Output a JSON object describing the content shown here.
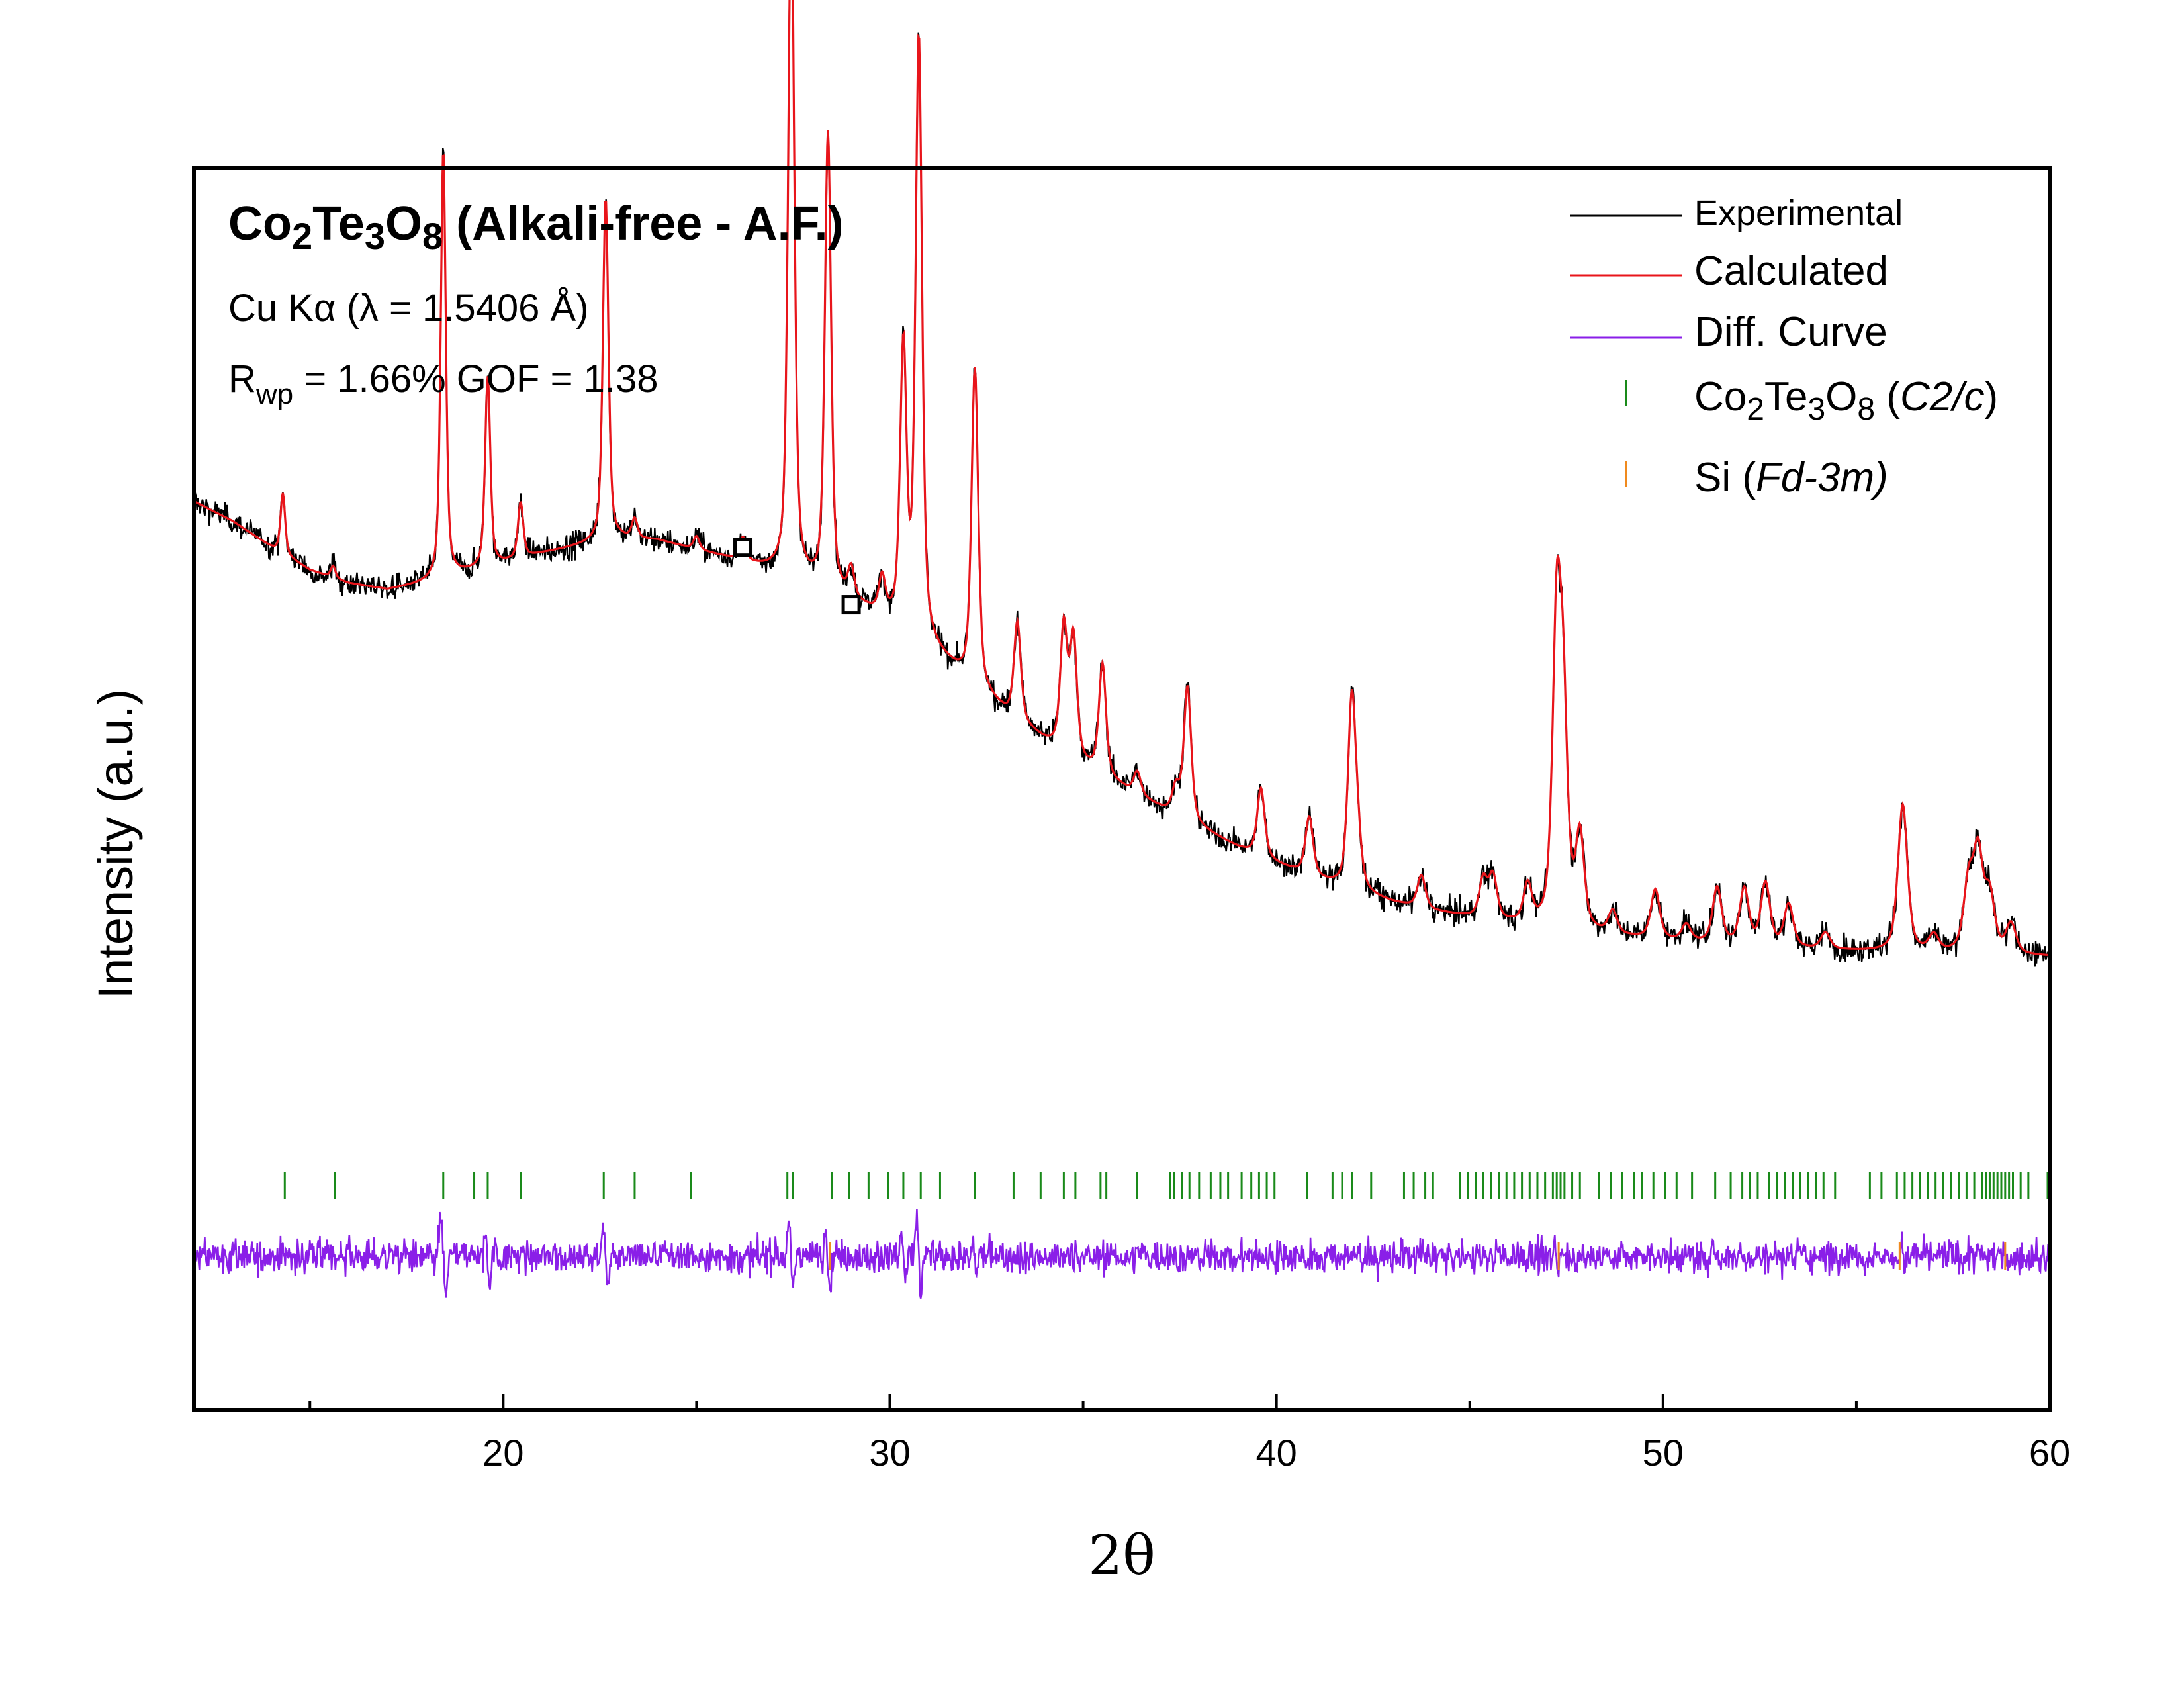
{
  "chart_data": {
    "type": "line",
    "title": {
      "parts": [
        {
          "t": "Co",
          "s": "base"
        },
        {
          "t": "2",
          "s": "sub"
        },
        {
          "t": "Te",
          "s": "base"
        },
        {
          "t": "3",
          "s": "sub"
        },
        {
          "t": "O",
          "s": "base"
        },
        {
          "t": "8",
          "s": "sub"
        },
        {
          "t": " (Alkali-free - A.F.)",
          "s": "base"
        }
      ]
    },
    "annotations": {
      "radiation": "Cu Kα (λ = 1.5406 Å)",
      "rwp_symbol": "R",
      "rwp_sub": "wp",
      "rwp_rest": " = 1.66%  GOF = 1.38"
    },
    "xlabel": "2θ",
    "ylabel": "Intensity (a.u.)",
    "xlim": [
      12,
      60
    ],
    "ylim": [
      -560,
      1340
    ],
    "xticks": [
      20,
      30,
      40,
      50,
      60
    ],
    "xticks_minor": [
      15,
      25,
      35,
      45,
      55
    ],
    "yticks": [],
    "grid": false,
    "legend_position": "top-right",
    "colors": {
      "experimental": "#000000",
      "calculated": "#e8151b",
      "diff": "#8a1fe8",
      "phase1": "#1a8a1a",
      "phase2": "#f08a1e"
    },
    "legend": [
      {
        "kind": "line",
        "color": "#000000",
        "parts": [
          {
            "t": "Experimental",
            "s": "base"
          }
        ]
      },
      {
        "kind": "line",
        "color": "#e8151b",
        "parts": [
          {
            "t": "Calculated",
            "s": "base"
          }
        ]
      },
      {
        "kind": "line",
        "color": "#8a1fe8",
        "parts": [
          {
            "t": "Diff. Curve",
            "s": "base"
          }
        ]
      },
      {
        "kind": "tick",
        "color": "#1a8a1a",
        "parts": [
          {
            "t": "Co",
            "s": "base"
          },
          {
            "t": "2",
            "s": "sub"
          },
          {
            "t": "Te",
            "s": "base"
          },
          {
            "t": "3",
            "s": "sub"
          },
          {
            "t": "O",
            "s": "base"
          },
          {
            "t": "8",
            "s": "sub"
          },
          {
            "t": " (",
            "s": "base"
          },
          {
            "t": "C2/c",
            "s": "ital"
          },
          {
            "t": ")",
            "s": "base"
          }
        ]
      },
      {
        "kind": "tick",
        "color": "#f08a1e",
        "parts": [
          {
            "t": "Si (",
            "s": "base"
          },
          {
            "t": "Fd-3m)",
            "s": "ital"
          }
        ]
      }
    ],
    "series": [
      {
        "name": "Experimental",
        "background": [
          [
            12,
            830
          ],
          [
            13,
            800
          ],
          [
            14,
            760
          ],
          [
            15,
            725
          ],
          [
            16,
            705
          ],
          [
            17,
            695
          ],
          [
            18,
            705
          ],
          [
            19,
            720
          ],
          [
            20,
            735
          ],
          [
            21,
            750
          ],
          [
            22,
            762
          ],
          [
            23,
            772
          ],
          [
            24,
            770
          ],
          [
            25,
            755
          ],
          [
            26,
            740
          ],
          [
            27,
            722
          ],
          [
            28,
            700
          ],
          [
            29,
            675
          ],
          [
            30,
            645
          ],
          [
            31,
            605
          ],
          [
            32,
            555
          ],
          [
            33,
            505
          ],
          [
            34,
            462
          ],
          [
            35,
            425
          ],
          [
            36,
            392
          ],
          [
            37,
            360
          ],
          [
            38,
            330
          ],
          [
            39,
            300
          ],
          [
            40,
            275
          ],
          [
            41,
            252
          ],
          [
            42,
            232
          ],
          [
            43,
            216
          ],
          [
            44,
            203
          ],
          [
            45,
            193
          ],
          [
            46,
            184
          ],
          [
            47,
            176
          ],
          [
            48,
            169
          ],
          [
            49,
            163
          ],
          [
            50,
            158
          ],
          [
            52,
            150
          ],
          [
            54,
            144
          ],
          [
            56,
            140
          ],
          [
            58,
            137
          ],
          [
            60,
            134
          ]
        ],
        "peaks": [
          [
            14.3,
            93
          ],
          [
            15.6,
            18
          ],
          [
            18.45,
            655
          ],
          [
            19.6,
            290
          ],
          [
            20.45,
            85
          ],
          [
            22.65,
            525
          ],
          [
            23.4,
            30
          ],
          [
            25.0,
            20
          ],
          [
            26.2,
            35
          ],
          [
            27.45,
            1050
          ],
          [
            28.4,
            700
          ],
          [
            29.0,
            45
          ],
          [
            29.8,
            55
          ],
          [
            30.35,
            425
          ],
          [
            30.75,
            915
          ],
          [
            32.2,
            485
          ],
          [
            33.3,
            150
          ],
          [
            34.5,
            190
          ],
          [
            34.75,
            180
          ],
          [
            35.5,
            170
          ],
          [
            36.4,
            35
          ],
          [
            37.4,
            40
          ],
          [
            37.7,
            205
          ],
          [
            39.6,
            105
          ],
          [
            40.85,
            90
          ],
          [
            41.95,
            285
          ],
          [
            42.1,
            60
          ],
          [
            43.75,
            50
          ],
          [
            45.35,
            58
          ],
          [
            45.6,
            65
          ],
          [
            46.5,
            58
          ],
          [
            47.25,
            450
          ],
          [
            47.42,
            300
          ],
          [
            47.85,
            140
          ],
          [
            48.7,
            35
          ],
          [
            49.8,
            75
          ],
          [
            50.6,
            25
          ],
          [
            51.4,
            85
          ],
          [
            52.1,
            85
          ],
          [
            52.65,
            95
          ],
          [
            53.25,
            65
          ],
          [
            54.2,
            25
          ],
          [
            56.2,
            225
          ],
          [
            57.0,
            25
          ],
          [
            57.9,
            100
          ],
          [
            58.15,
            145
          ],
          [
            58.45,
            85
          ],
          [
            59.0,
            45
          ]
        ],
        "noise": 14
      },
      {
        "name": "Calculated",
        "fitted_to": "Experimental"
      },
      {
        "name": "Diff. Curve",
        "offset": -325,
        "noise": 18,
        "features": [
          [
            18.45,
            -62,
            0.18
          ],
          [
            19.6,
            -38,
            0.12
          ],
          [
            22.65,
            -45,
            0.14
          ],
          [
            27.45,
            -65,
            0.14
          ],
          [
            28.4,
            -45,
            0.14
          ],
          [
            30.35,
            -50,
            0.12
          ],
          [
            30.75,
            -70,
            0.14
          ],
          [
            32.2,
            -35,
            0.12
          ],
          [
            47.25,
            -30,
            0.1
          ],
          [
            56.2,
            -20,
            0.1
          ]
        ]
      }
    ],
    "phase_ticks": [
      {
        "name": "Co₂Te₃O₈ (C2/c)",
        "color": "#1a8a1a",
        "positions": [
          14.35,
          15.65,
          18.45,
          19.25,
          19.6,
          20.45,
          22.6,
          23.4,
          24.85,
          27.35,
          27.5,
          28.5,
          28.95,
          29.45,
          29.95,
          30.35,
          30.8,
          31.3,
          32.2,
          33.2,
          33.9,
          34.5,
          34.8,
          35.45,
          35.6,
          36.4,
          37.25,
          37.35,
          37.55,
          37.75,
          38.0,
          38.3,
          38.55,
          38.75,
          39.1,
          39.35,
          39.55,
          39.75,
          39.95,
          40.8,
          41.45,
          41.7,
          41.95,
          42.45,
          43.3,
          43.55,
          43.85,
          44.05,
          44.75,
          44.95,
          45.15,
          45.35,
          45.55,
          45.75,
          45.95,
          46.15,
          46.35,
          46.55,
          46.75,
          46.95,
          47.15,
          47.25,
          47.35,
          47.45,
          47.65,
          47.85,
          48.35,
          48.65,
          48.95,
          49.25,
          49.45,
          49.75,
          50.05,
          50.35,
          50.75,
          51.35,
          51.75,
          52.05,
          52.25,
          52.45,
          52.75,
          52.95,
          53.15,
          53.35,
          53.55,
          53.75,
          53.95,
          54.15,
          54.45,
          55.35,
          55.65,
          56.05,
          56.25,
          56.45,
          56.65,
          56.85,
          57.05,
          57.25,
          57.45,
          57.65,
          57.85,
          58.05,
          58.25,
          58.35,
          58.45,
          58.55,
          58.65,
          58.75,
          58.85,
          58.95,
          59.05,
          59.25,
          59.45,
          59.95,
          60.0
        ]
      },
      {
        "name": "Si (Fd-3m)",
        "color": "#f08a1e",
        "positions": [
          28.45,
          47.3,
          56.12,
          58.85
        ]
      }
    ],
    "markers": [
      {
        "type": "open-square",
        "x": 26.2,
        "y": 760
      },
      {
        "type": "open-square",
        "x": 29.0,
        "y": 672
      }
    ]
  }
}
